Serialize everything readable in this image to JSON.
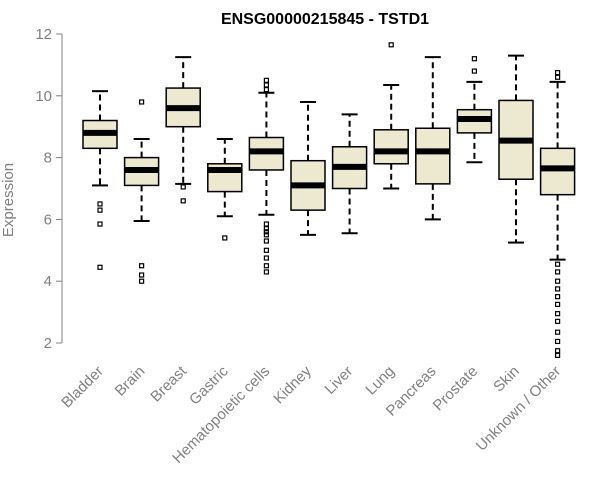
{
  "chart_data": {
    "type": "box",
    "title": "ENSG00000215845 - TSTD1",
    "ylabel": "Expression",
    "ylim": [
      1.5,
      12.3
    ],
    "yticks": [
      2,
      4,
      6,
      8,
      10,
      12
    ],
    "categories": [
      "Bladder",
      "Brain",
      "Breast",
      "Gastric",
      "Hematopoietic cells",
      "Kidney",
      "Liver",
      "Lung",
      "Pancreas",
      "Prostate",
      "Skin",
      "Unknown / Other"
    ],
    "boxes": [
      {
        "min": 7.1,
        "q1": 8.3,
        "median": 8.8,
        "q3": 9.2,
        "max": 10.15,
        "outliers": [
          6.5,
          6.3,
          5.85,
          4.45
        ]
      },
      {
        "min": 5.95,
        "q1": 7.1,
        "median": 7.6,
        "q3": 8.0,
        "max": 8.6,
        "outliers": [
          9.8,
          4.5,
          4.2,
          4.0
        ]
      },
      {
        "min": 7.15,
        "q1": 9.0,
        "median": 9.6,
        "q3": 10.25,
        "max": 11.25,
        "outliers": [
          7.05,
          6.6
        ]
      },
      {
        "min": 6.1,
        "q1": 6.9,
        "median": 7.6,
        "q3": 7.8,
        "max": 8.6,
        "outliers": [
          5.4
        ]
      },
      {
        "min": 6.15,
        "q1": 7.6,
        "median": 8.2,
        "q3": 8.65,
        "max": 10.1,
        "outliers": [
          10.5,
          10.35,
          10.2,
          5.85,
          5.7,
          5.6,
          5.5,
          5.3,
          5.0,
          4.75,
          4.5,
          4.3
        ]
      },
      {
        "min": 5.5,
        "q1": 6.3,
        "median": 7.1,
        "q3": 7.9,
        "max": 9.8,
        "outliers": []
      },
      {
        "min": 5.55,
        "q1": 7.0,
        "median": 7.7,
        "q3": 8.35,
        "max": 9.4,
        "outliers": []
      },
      {
        "min": 7.0,
        "q1": 7.8,
        "median": 8.2,
        "q3": 8.9,
        "max": 10.35,
        "outliers": [
          11.65
        ]
      },
      {
        "min": 6.0,
        "q1": 7.15,
        "median": 8.2,
        "q3": 8.95,
        "max": 11.25,
        "outliers": []
      },
      {
        "min": 7.85,
        "q1": 8.8,
        "median": 9.25,
        "q3": 9.55,
        "max": 10.45,
        "outliers": [
          11.2,
          10.8
        ]
      },
      {
        "min": 5.25,
        "q1": 7.3,
        "median": 8.55,
        "q3": 9.85,
        "max": 11.3,
        "outliers": []
      },
      {
        "min": 4.7,
        "q1": 6.8,
        "median": 7.65,
        "q3": 8.3,
        "max": 10.45,
        "outliers": [
          10.75,
          10.6,
          4.55,
          4.3,
          4.0,
          3.75,
          3.5,
          3.25,
          2.95,
          2.7,
          2.35,
          2.05,
          1.75,
          1.6
        ]
      }
    ],
    "colors": {
      "box_fill": "#ede8d0",
      "box_stroke": "#000000",
      "axis": "#808080"
    }
  }
}
